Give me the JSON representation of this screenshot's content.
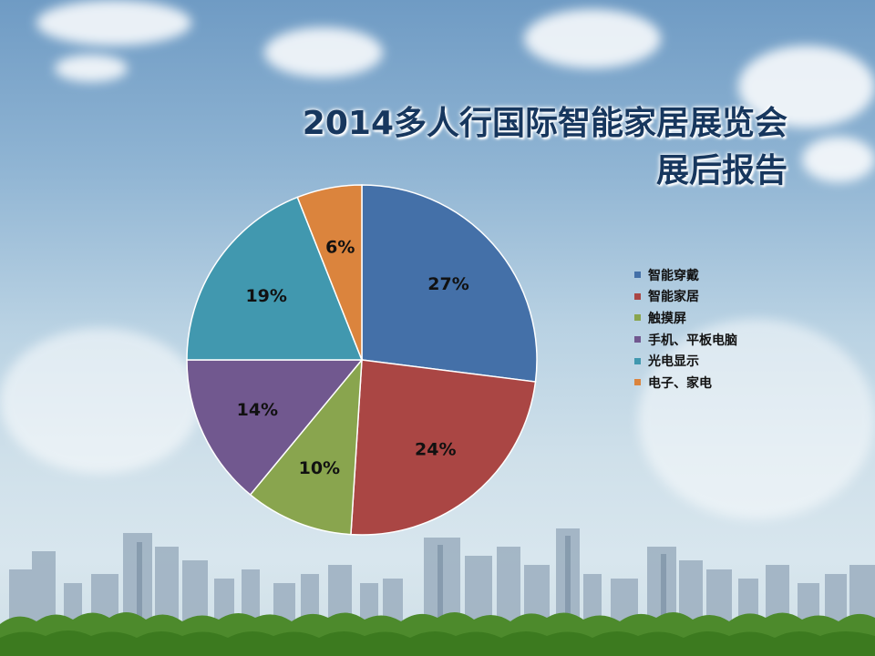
{
  "slide": {
    "title_line1": "2014多人行国际智能家居展览会",
    "title_line2": "展后报告"
  },
  "chart_data": {
    "type": "pie",
    "title": "",
    "legend_position": "right",
    "categories": [
      "智能穿戴",
      "智能家居",
      "触摸屏",
      "手机、平板电脑",
      "光电显示",
      "电子、家电"
    ],
    "values": [
      27,
      24,
      10,
      14,
      19,
      6
    ],
    "data_labels": [
      "27%",
      "24%",
      "10%",
      "14%",
      "19%",
      "6%"
    ],
    "colors": [
      "#4470a8",
      "#aa4644",
      "#89a54e",
      "#71588f",
      "#4198af",
      "#db843d"
    ]
  },
  "icons": {
    "background": "sky-clouds-city-skyline"
  }
}
